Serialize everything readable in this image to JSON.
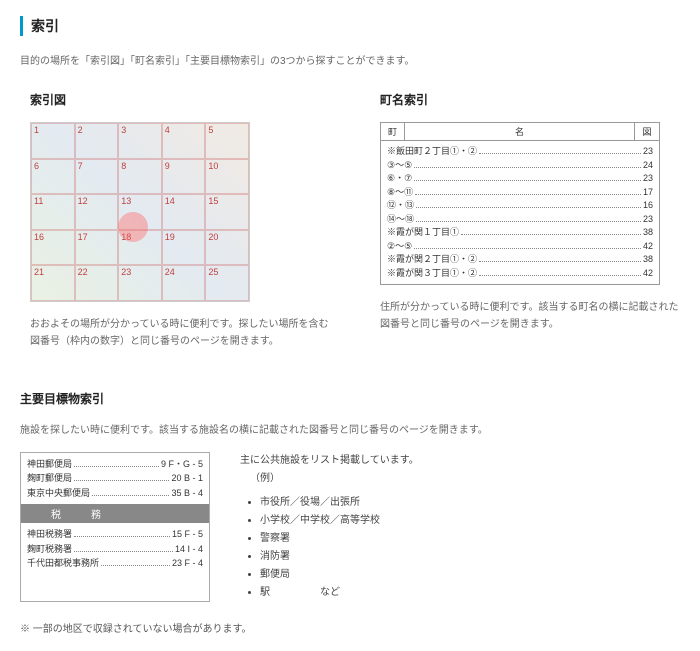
{
  "pageTitle": "索引",
  "intro": "目的の場所を「索引図」「町名索引」「主要目標物索引」の3つから探すことができます。",
  "left": {
    "title": "索引図",
    "desc": "おおよその場所が分かっている時に便利です。探したい場所を含む図番号（枠内の数字）と同じ番号のページを開きます。",
    "gridNums": [
      "1",
      "2",
      "3",
      "4",
      "5",
      "6",
      "7",
      "8",
      "9",
      "10",
      "11",
      "12",
      "13",
      "14",
      "15",
      "16",
      "17",
      "18",
      "19",
      "20",
      "21",
      "22",
      "23",
      "24",
      "25"
    ]
  },
  "right": {
    "title": "町名索引",
    "head": {
      "a": "町",
      "b": "名",
      "c": "図"
    },
    "rows": [
      {
        "name": "※飯田町２丁目①・②",
        "pg": "23"
      },
      {
        "name": "③〜⑤",
        "pg": "24"
      },
      {
        "name": "⑥・⑦",
        "pg": "23"
      },
      {
        "name": "⑧〜⑪",
        "pg": "17"
      },
      {
        "name": "⑫・⑬",
        "pg": "16"
      },
      {
        "name": "⑭〜⑱",
        "pg": "23"
      },
      {
        "name": "※霞が関１丁目①",
        "pg": "38"
      },
      {
        "name": "②〜⑤",
        "pg": "42"
      },
      {
        "name": "※霞が関２丁目①・②",
        "pg": "38"
      },
      {
        "name": "※霞が関３丁目①・②",
        "pg": "42"
      }
    ],
    "desc": "住所が分かっている時に便利です。該当する町名の横に記載された図番号と同じ番号のページを開きます。"
  },
  "landmark": {
    "title": "主要目標物索引",
    "desc": "施設を探したい時に便利です。該当する施設名の横に記載された図番号と同じ番号のページを開きます。",
    "group1": [
      {
        "name": "神田郵便局",
        "pg": "9  F・G - 5"
      },
      {
        "name": "麹町郵便局",
        "pg": "20  B - 1"
      },
      {
        "name": "東京中央郵便局",
        "pg": "35  B - 4"
      }
    ],
    "header": "税務",
    "group2": [
      {
        "name": "神田税務署",
        "pg": "15  F - 5"
      },
      {
        "name": "麹町税務署",
        "pg": "14  I - 4"
      },
      {
        "name": "千代田都税事務所",
        "pg": "23  F - 4"
      }
    ],
    "rightText": "主に公共施設をリスト掲載しています。",
    "example": "（例）",
    "bullets": [
      "市役所／役場／出張所",
      "小学校／中学校／高等学校",
      "警察署",
      "消防署",
      "郵便局",
      "駅　　　　　など"
    ]
  },
  "note": "※ 一部の地区で収録されていない場合があります。"
}
